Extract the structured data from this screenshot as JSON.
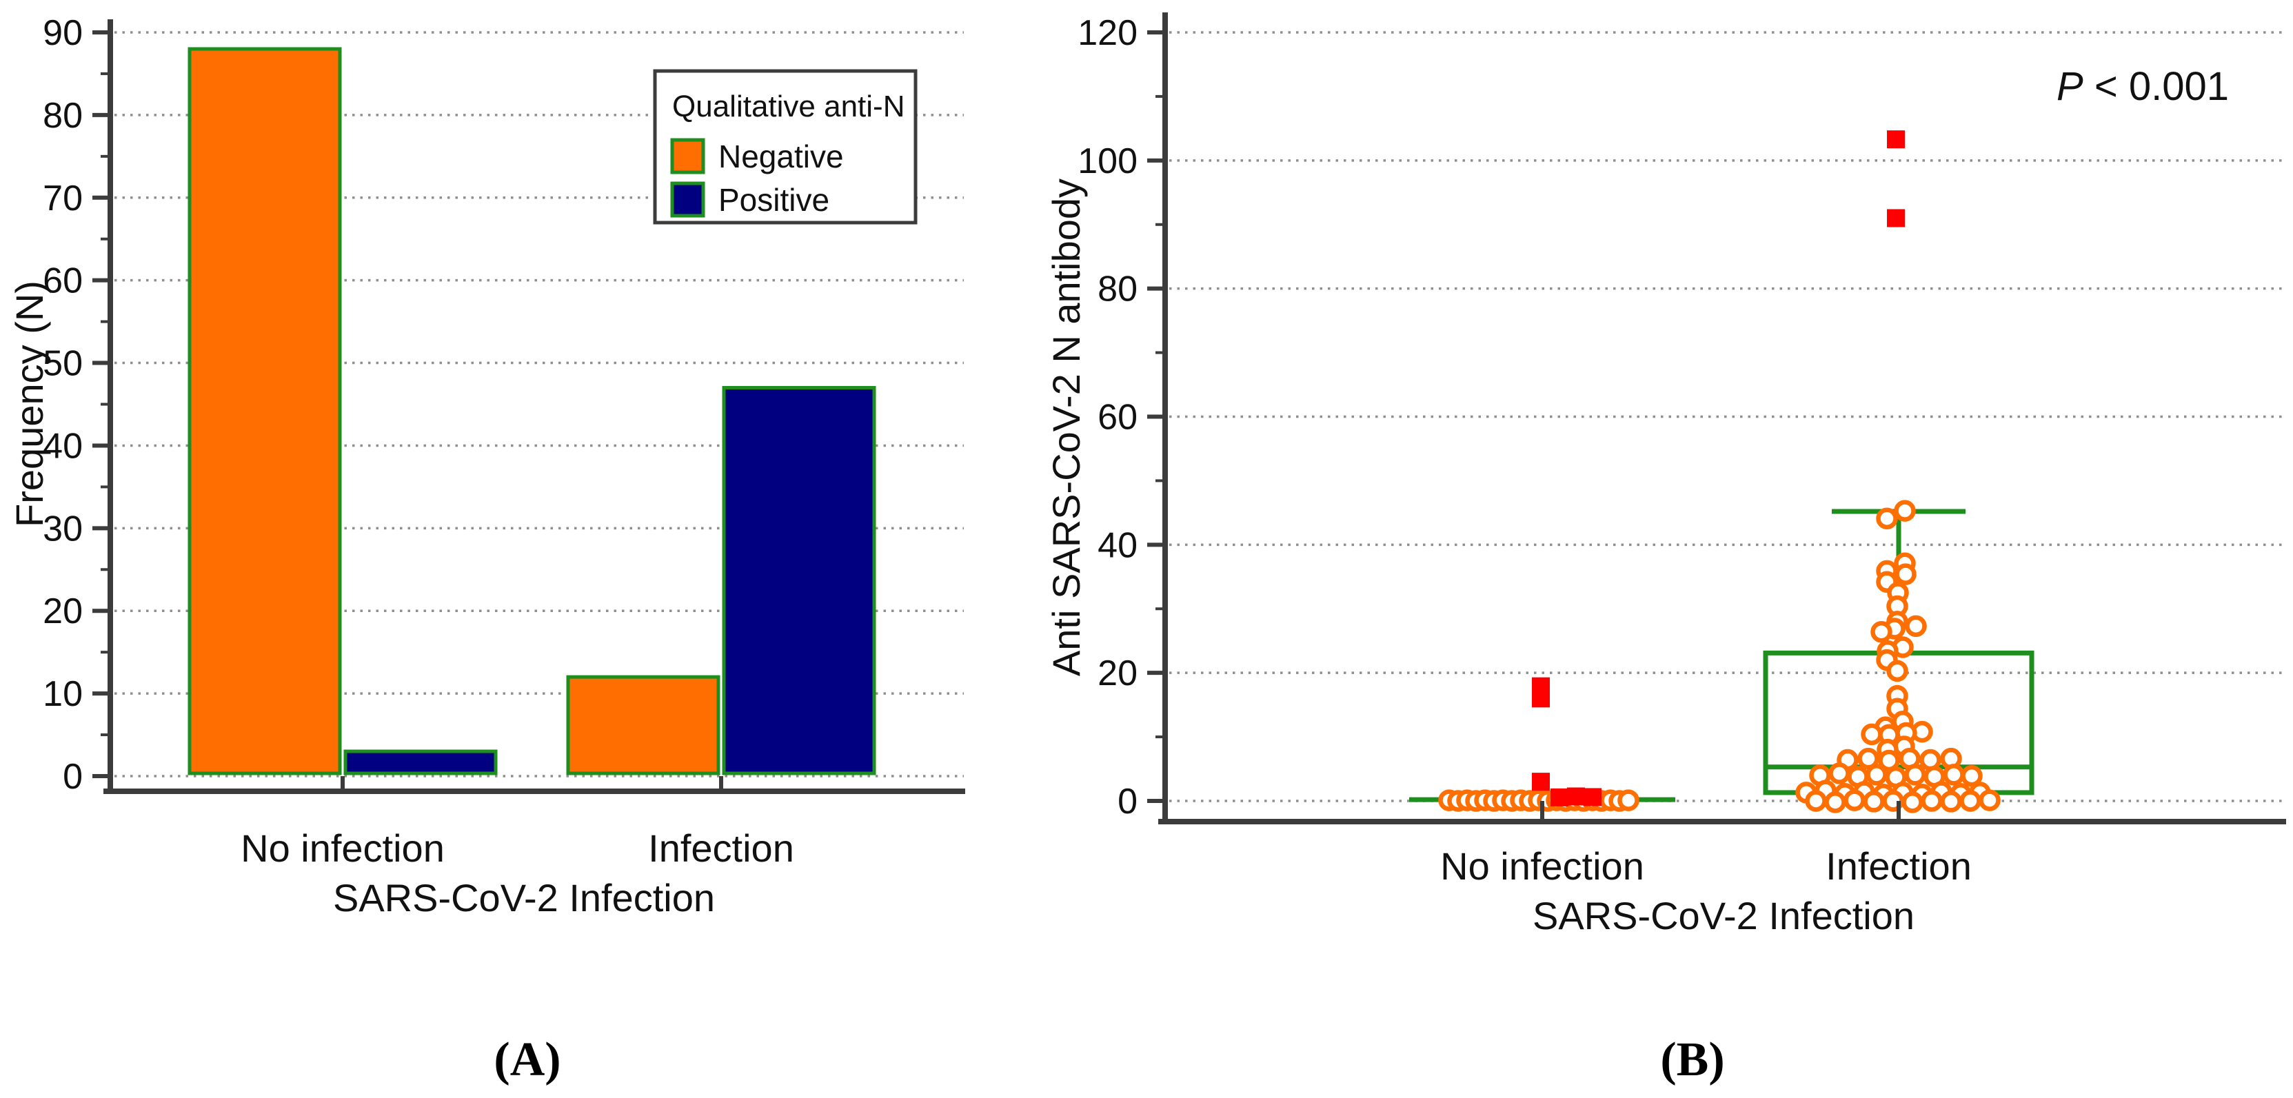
{
  "figure": {
    "panel_a_label": "(A)",
    "panel_b_label": "(B)"
  },
  "colors": {
    "orange": "#FF6E00",
    "navy": "#000080",
    "green": "#1E8E1E",
    "red": "#FF0000",
    "axis": "#3C3C3C",
    "grid": "#8F8F8F",
    "text": "#111111"
  },
  "chart_data": [
    {
      "id": "A",
      "type": "bar",
      "xlabel": "SARS-CoV-2 Infection",
      "ylabel": "Frequency (N)",
      "categories": [
        "No infection",
        "Infection"
      ],
      "series": [
        {
          "name": "Negative",
          "color": "#FF6E00",
          "values": [
            88,
            12
          ]
        },
        {
          "name": "Positive",
          "color": "#000080",
          "values": [
            3,
            47
          ]
        }
      ],
      "bar_edge_color": "#1E8E1E",
      "ylim": [
        0,
        90
      ],
      "ytick_step": 10,
      "yminor_step": 5,
      "grid": "dotted-horizontal",
      "legend": {
        "title": "Qualitative anti-N",
        "position": "upper-right",
        "entries": [
          "Negative",
          "Positive"
        ]
      }
    },
    {
      "id": "B",
      "type": "box-scatter",
      "xlabel": "SARS-CoV-2 Infection",
      "ylabel": "Anti SARS-CoV-2 N antibody",
      "annotation": {
        "italic": "P",
        "text": " < 0.001"
      },
      "categories": [
        "No infection",
        "Infection"
      ],
      "ylim": [
        0,
        120
      ],
      "ytick_step": 20,
      "yminor_step": 10,
      "grid": "dotted-horizontal",
      "box_color": "#1E8E1E",
      "point_style": {
        "circle_stroke": "#FF6E00",
        "circle_fill": "#FFFFFF",
        "square_fill": "#FF0000"
      },
      "boxes": [
        {
          "category": "No infection",
          "collapsed": true,
          "median": 0.2,
          "q1": 0,
          "q3": 0,
          "whisker_low": 0,
          "whisker_high": 0
        },
        {
          "category": "Infection",
          "collapsed": false,
          "median": 5.3,
          "q1": 1.3,
          "q3": 23.1,
          "whisker_low": 0.2,
          "whisker_high": 45.2
        }
      ],
      "points": {
        "no_infection_circles": [
          [
            -135,
            0.1
          ],
          [
            -122,
            0.0
          ],
          [
            -109,
            0.1
          ],
          [
            -96,
            0.0
          ],
          [
            -83,
            0.1
          ],
          [
            -70,
            0.0
          ],
          [
            -57,
            0.1
          ],
          [
            -44,
            0.0
          ],
          [
            -31,
            0.1
          ],
          [
            -18,
            0.0
          ],
          [
            -5,
            0.1
          ],
          [
            8,
            0.0
          ],
          [
            21,
            0.1
          ],
          [
            34,
            0.0
          ],
          [
            47,
            0.1
          ],
          [
            60,
            0.0
          ],
          [
            73,
            0.1
          ],
          [
            86,
            0.0
          ],
          [
            99,
            0.1
          ],
          [
            112,
            0.0
          ],
          [
            125,
            0.1
          ]
        ],
        "no_infection_squares": [
          [
            -2,
            17.9
          ],
          [
            -2,
            16.0
          ],
          [
            -2,
            3.0
          ],
          [
            25,
            0.55
          ],
          [
            49,
            0.7
          ],
          [
            73,
            0.6
          ]
        ],
        "infection_circles": [
          [
            -17,
            44.1
          ],
          [
            9,
            45.3
          ],
          [
            9,
            37.1
          ],
          [
            -17,
            35.9
          ],
          [
            10,
            35.4
          ],
          [
            -17,
            34.2
          ],
          [
            -1,
            32.5
          ],
          [
            -2,
            30.4
          ],
          [
            -2,
            28.0
          ],
          [
            25,
            27.3
          ],
          [
            -6,
            26.9
          ],
          [
            -25,
            26.4
          ],
          [
            6,
            24.0
          ],
          [
            -16,
            23.4
          ],
          [
            -17,
            22.0
          ],
          [
            -2,
            20.3
          ],
          [
            -2,
            16.4
          ],
          [
            -2,
            14.4
          ],
          [
            6,
            12.4
          ],
          [
            -19,
            11.5
          ],
          [
            34,
            10.8
          ],
          [
            11,
            10.6
          ],
          [
            -39,
            10.4
          ],
          [
            -14,
            10.3
          ],
          [
            8,
            8.5
          ],
          [
            -16,
            8.0
          ],
          [
            -74,
            6.4
          ],
          [
            -44,
            6.6
          ],
          [
            -14,
            6.3
          ],
          [
            16,
            6.6
          ],
          [
            46,
            6.4
          ],
          [
            76,
            6.6
          ],
          [
            -114,
            4.0
          ],
          [
            -86,
            4.3
          ],
          [
            -59,
            3.8
          ],
          [
            -32,
            4.1
          ],
          [
            -4,
            3.7
          ],
          [
            24,
            4.1
          ],
          [
            52,
            3.8
          ],
          [
            80,
            4.1
          ],
          [
            106,
            3.9
          ],
          [
            -134,
            1.3
          ],
          [
            -106,
            1.6
          ],
          [
            -78,
            1.1
          ],
          [
            -50,
            1.4
          ],
          [
            -22,
            1.0
          ],
          [
            6,
            1.3
          ],
          [
            34,
            1.0
          ],
          [
            62,
            1.4
          ],
          [
            90,
            1.1
          ],
          [
            118,
            1.3
          ],
          [
            -120,
            0.0
          ],
          [
            -92,
            -0.2
          ],
          [
            -64,
            0.1
          ],
          [
            -36,
            -0.1
          ],
          [
            -8,
            0.0
          ],
          [
            20,
            -0.2
          ],
          [
            48,
            0.0
          ],
          [
            76,
            -0.1
          ],
          [
            104,
            0.0
          ],
          [
            132,
            0.1
          ]
        ],
        "infection_squares": [
          [
            -4,
            103.3
          ],
          [
            -4,
            91.0
          ]
        ]
      }
    }
  ]
}
